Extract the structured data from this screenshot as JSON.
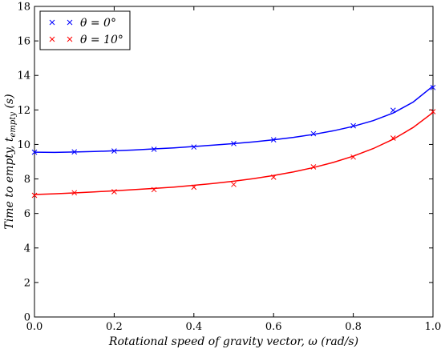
{
  "chart_data": {
    "type": "line",
    "title": "",
    "xlabel": "Rotational speed of gravity vector, ω (rad/s)",
    "ylabel": "Time to empty, t_empty (s)",
    "ylabel_main": "Time to empty, ",
    "ylabel_var": "t",
    "ylabel_sub": "empty",
    "ylabel_unit": " (s)",
    "xlim": [
      0.0,
      1.0
    ],
    "ylim": [
      0,
      18
    ],
    "xticks": [
      0.0,
      0.2,
      0.4,
      0.6,
      0.8,
      1.0
    ],
    "xtick_labels": [
      "0.0",
      "0.2",
      "0.4",
      "0.6",
      "0.8",
      "1.0"
    ],
    "yticks": [
      0,
      2,
      4,
      6,
      8,
      10,
      12,
      14,
      16,
      18
    ],
    "ytick_labels": [
      "0",
      "2",
      "4",
      "6",
      "8",
      "10",
      "12",
      "14",
      "16",
      "18"
    ],
    "grid": false,
    "legend_position": "top-left",
    "series": [
      {
        "name": "θ = 0°",
        "color": "#0000ff",
        "marker": "x",
        "points_x": [
          0.0,
          0.1,
          0.2,
          0.3,
          0.4,
          0.5,
          0.6,
          0.7,
          0.8,
          0.9,
          1.0
        ],
        "points_y": [
          9.55,
          9.57,
          9.62,
          9.72,
          9.85,
          10.05,
          10.27,
          10.62,
          11.08,
          11.98,
          13.3
        ],
        "fit_x": [
          0.0,
          0.05,
          0.1,
          0.15,
          0.2,
          0.25,
          0.3,
          0.35,
          0.4,
          0.45,
          0.5,
          0.55,
          0.6,
          0.65,
          0.7,
          0.75,
          0.8,
          0.85,
          0.9,
          0.95,
          1.0
        ],
        "fit_y": [
          9.55,
          9.54,
          9.56,
          9.59,
          9.63,
          9.68,
          9.74,
          9.8,
          9.88,
          9.96,
          10.05,
          10.15,
          10.27,
          10.41,
          10.58,
          10.79,
          11.05,
          11.38,
          11.82,
          12.45,
          13.38
        ]
      },
      {
        "name": "θ = 10°",
        "color": "#ff0000",
        "marker": "x",
        "points_x": [
          0.0,
          0.1,
          0.2,
          0.3,
          0.4,
          0.5,
          0.6,
          0.7,
          0.8,
          0.9,
          1.0
        ],
        "points_y": [
          7.05,
          7.2,
          7.26,
          7.38,
          7.52,
          7.68,
          8.1,
          8.7,
          9.27,
          10.37,
          11.9
        ],
        "fit_x": [
          0.0,
          0.05,
          0.1,
          0.15,
          0.2,
          0.25,
          0.3,
          0.35,
          0.4,
          0.45,
          0.5,
          0.55,
          0.6,
          0.65,
          0.7,
          0.75,
          0.8,
          0.85,
          0.9,
          0.95,
          1.0
        ],
        "fit_y": [
          7.1,
          7.14,
          7.19,
          7.25,
          7.31,
          7.38,
          7.45,
          7.53,
          7.63,
          7.74,
          7.87,
          8.02,
          8.2,
          8.41,
          8.66,
          8.96,
          9.32,
          9.76,
          10.3,
          10.98,
          11.85
        ]
      }
    ]
  }
}
